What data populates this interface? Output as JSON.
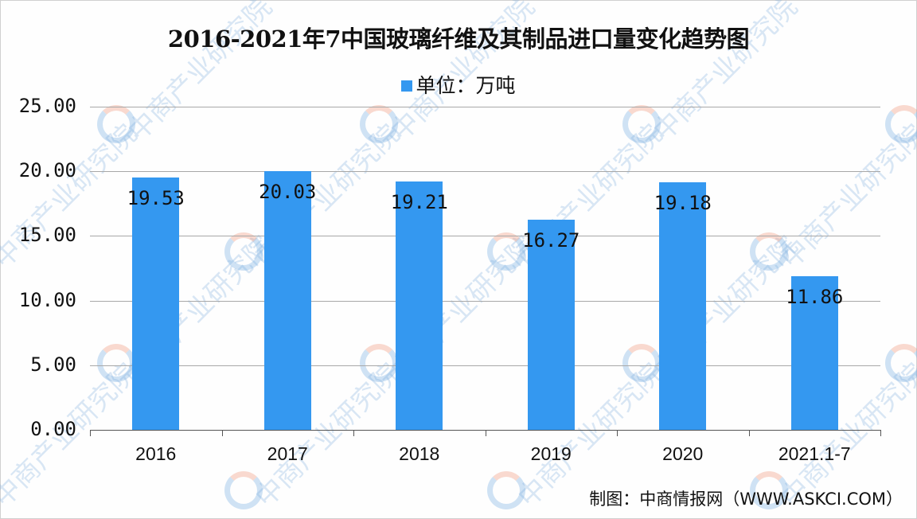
{
  "chart_data": {
    "type": "bar",
    "title": "2016-2021年7中国玻璃纤维及其制品进口量变化趋势图",
    "legend": "单位：万吨",
    "categories": [
      "2016",
      "2017",
      "2018",
      "2019",
      "2020",
      "2021.1-7"
    ],
    "values": [
      19.53,
      20.03,
      19.21,
      16.27,
      19.18,
      11.86
    ],
    "value_labels": [
      "19.53",
      "20.03",
      "19.21",
      "16.27",
      "19.18",
      "11.86"
    ],
    "xlabel": "",
    "ylabel": "",
    "ylim": [
      0,
      25
    ],
    "yticks": [
      "0.00",
      "5.00",
      "10.00",
      "15.00",
      "20.00",
      "25.00"
    ],
    "grid": true,
    "legend_position": "top",
    "bar_color": "#3498f0"
  },
  "source": "制图：中商情报网（WWW.ASKCI.COM）",
  "watermark": "中商产业研究院"
}
